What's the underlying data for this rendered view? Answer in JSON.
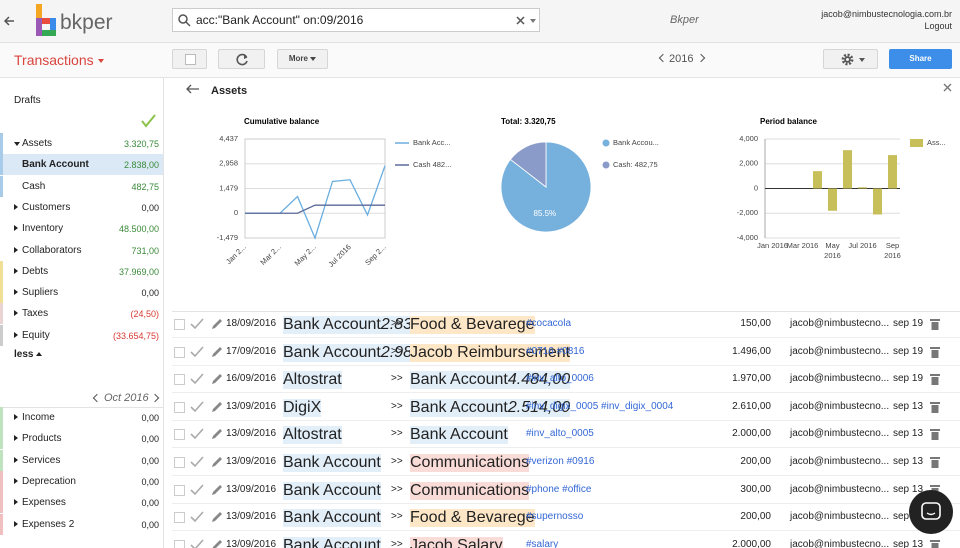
{
  "header": {
    "logo": "bkper",
    "search": "acc:\"Bank Account\" on:09/2016",
    "app_name": "Bkper",
    "user": "jacob@nimbustecnologia.com.br",
    "logout": "Logout"
  },
  "toolbar": {
    "title": "Transactions",
    "more": "More",
    "year": "2016",
    "share": "Share"
  },
  "sidebar": {
    "drafts": "Drafts",
    "accounts": [
      {
        "name": "Assets",
        "balance": "3.320,75",
        "color": "#3a8a3a",
        "bar": "#a9cbea",
        "expanded": true
      },
      {
        "name": "Bank Account",
        "balance": "2.838,00",
        "color": "#3a8a3a",
        "bar": "#a9cbea",
        "child": true,
        "selected": true
      },
      {
        "name": "Cash",
        "balance": "482,75",
        "color": "#3a8a3a",
        "bar": "#a9cbea",
        "child": true
      },
      {
        "name": "Customers",
        "balance": "0,00",
        "color": "#222"
      },
      {
        "name": "Inventory",
        "balance": "48.500,00",
        "color": "#3a8a3a"
      },
      {
        "name": "Collaborators",
        "balance": "731,00",
        "color": "#3a8a3a"
      },
      {
        "name": "Debts",
        "balance": "37.969,00",
        "color": "#3a8a3a",
        "bar": "#f2df96"
      },
      {
        "name": "Supliers",
        "balance": "0,00",
        "color": "#222",
        "bar": "#f2df96"
      },
      {
        "name": "Taxes",
        "balance": "(24,50)",
        "color": "#d83a34",
        "bar": "#e9d3d3"
      },
      {
        "name": "Equity",
        "balance": "(33.654,75)",
        "color": "#d83a34",
        "bar": "#cccccc"
      }
    ],
    "less": "less",
    "period": "Oct 2016",
    "period_accounts": [
      {
        "name": "Income",
        "balance": "0,00",
        "color": "#222",
        "bar": "#bfe3bf"
      },
      {
        "name": "Products",
        "balance": "0,00",
        "color": "#222",
        "bar": "#bfe3bf"
      },
      {
        "name": "Services",
        "balance": "0,00",
        "color": "#222",
        "bar": "#bfe3bf"
      },
      {
        "name": "Deprecation",
        "balance": "0,00",
        "color": "#222",
        "bar": "#f0c0c0"
      },
      {
        "name": "Expenses",
        "balance": "0,00",
        "color": "#222",
        "bar": "#f0c0c0"
      },
      {
        "name": "Expenses 2",
        "balance": "0,00",
        "color": "#222",
        "bar": "#f0c0c0"
      }
    ]
  },
  "panel": {
    "title": "Assets"
  },
  "chart_data": [
    {
      "type": "line",
      "title": "Cumulative balance",
      "categories": [
        "Jan 2...",
        null,
        "Mar 2...",
        null,
        "May 2...",
        null,
        "Jul 2016",
        null,
        "Sep 2..."
      ],
      "series": [
        {
          "name": "Bank Acc...",
          "color": "#6aaee0",
          "values": [
            0,
            0,
            0,
            1000,
            -1479,
            1900,
            2000,
            -100,
            2838
          ]
        },
        {
          "name": "Cash 482...",
          "color": "#5a6a9a",
          "values": [
            0,
            0,
            0,
            0,
            482.75,
            482.75,
            482.75,
            482.75,
            482.75
          ]
        }
      ],
      "ylim": [
        -1479,
        4437
      ],
      "yticks": [
        {
          "value": 4437,
          "label": "4,437"
        },
        {
          "value": 2958,
          "label": "2,958"
        },
        {
          "value": 1479,
          "label": "1,479"
        },
        0,
        {
          "value": -1479,
          "label": "-1,479"
        }
      ],
      "grid": true
    },
    {
      "type": "pie",
      "title": "Total: 3.320,75",
      "categories": [
        "Bank Accou...",
        "Cash: 482,75"
      ],
      "values": [
        85.5,
        14.5
      ],
      "value_labels": [
        "85.5%",
        null
      ],
      "colors": [
        "#76b0dc",
        "#8a9bc9"
      ]
    },
    {
      "type": "bar",
      "title": "Period balance",
      "categories": [
        "Jan 2016",
        null,
        "Mar 2016",
        null,
        "May 2016",
        null,
        "Jul 2016",
        null,
        "Sep 2016"
      ],
      "series": [
        {
          "name": "Ass...",
          "color": "#c6bf5a",
          "values": [
            0,
            0,
            0,
            1400,
            -1800,
            3100,
            100,
            -2100,
            2700
          ]
        }
      ],
      "ylim": [
        -4000,
        4000
      ],
      "yticks": [
        {
          "value": 4000,
          "label": "4,000"
        },
        {
          "value": 2000,
          "label": "2,000"
        },
        0,
        {
          "value": -2000,
          "label": "-2,000"
        },
        {
          "value": -4000,
          "label": "-4,000"
        }
      ],
      "grid": true
    }
  ],
  "transactions": {
    "arrow": ">>",
    "rows": [
      {
        "date": "18/09/2016",
        "from": {
          "name": "Bank Account",
          "balance": "2.838,00",
          "color": "#e2eef8"
        },
        "to": {
          "name": "Food & Bevarege",
          "color": "#fde7c6"
        },
        "description": "#cocacola",
        "amount": "150,00",
        "user": "jacob@nimbustecno...",
        "posted": "sep 19"
      },
      {
        "date": "17/09/2016",
        "from": {
          "name": "Bank Account",
          "balance": "2.988,00",
          "color": "#e2eef8"
        },
        "to": {
          "name": "Jacob Reimbursement",
          "color": "#fde7c6"
        },
        "description": "#0716 #0816",
        "amount": "1.496,00",
        "user": "jacob@nimbustecno...",
        "posted": "sep 19"
      },
      {
        "date": "16/09/2016",
        "from": {
          "name": "Altostrat",
          "color": "#e2eef8"
        },
        "to": {
          "name": "Bank Account",
          "balance": "4.484,00",
          "color": "#e2eef8"
        },
        "description": "#inv_alto_0006",
        "amount": "1.970,00",
        "user": "jacob@nimbustecno...",
        "posted": "sep 19"
      },
      {
        "date": "13/09/2016",
        "from": {
          "name": "DigiX",
          "color": "#e2eef8"
        },
        "to": {
          "name": "Bank Account",
          "balance": "2.514,00",
          "color": "#e2eef8"
        },
        "description": "#inv_digix_0005 #inv_digix_0004",
        "amount": "2.610,00",
        "user": "jacob@nimbustecno...",
        "posted": "sep 13"
      },
      {
        "date": "13/09/2016",
        "from": {
          "name": "Altostrat",
          "color": "#e2eef8"
        },
        "to": {
          "name": "Bank Account",
          "color": "#e2eef8"
        },
        "description": "#inv_alto_0005",
        "amount": "2.000,00",
        "user": "jacob@nimbustecno...",
        "posted": "sep 13"
      },
      {
        "date": "13/09/2016",
        "from": {
          "name": "Bank Account",
          "color": "#e2eef8"
        },
        "to": {
          "name": "Communications",
          "color": "#f9dcd8"
        },
        "description": "#verizon #0916",
        "amount": "200,00",
        "user": "jacob@nimbustecno...",
        "posted": "sep 13"
      },
      {
        "date": "13/09/2016",
        "from": {
          "name": "Bank Account",
          "color": "#e2eef8"
        },
        "to": {
          "name": "Communications",
          "color": "#f9dcd8"
        },
        "description": "#phone #office",
        "amount": "300,00",
        "user": "jacob@nimbustecno...",
        "posted": "sep 13"
      },
      {
        "date": "13/09/2016",
        "from": {
          "name": "Bank Account",
          "color": "#e2eef8"
        },
        "to": {
          "name": "Food & Bevarege",
          "color": "#fde7c6"
        },
        "description": "#supernosso",
        "amount": "200,00",
        "user": "jacob@nimbustecno...",
        "posted": "sep 13"
      },
      {
        "date": "13/09/2016",
        "from": {
          "name": "Bank Account",
          "color": "#e2eef8"
        },
        "to": {
          "name": "Jacob Salary",
          "color": "#f9dcd8"
        },
        "description": "#salary",
        "amount": "2.000,00",
        "user": "jacob@nimbustecno...",
        "posted": "sep 13"
      }
    ]
  }
}
